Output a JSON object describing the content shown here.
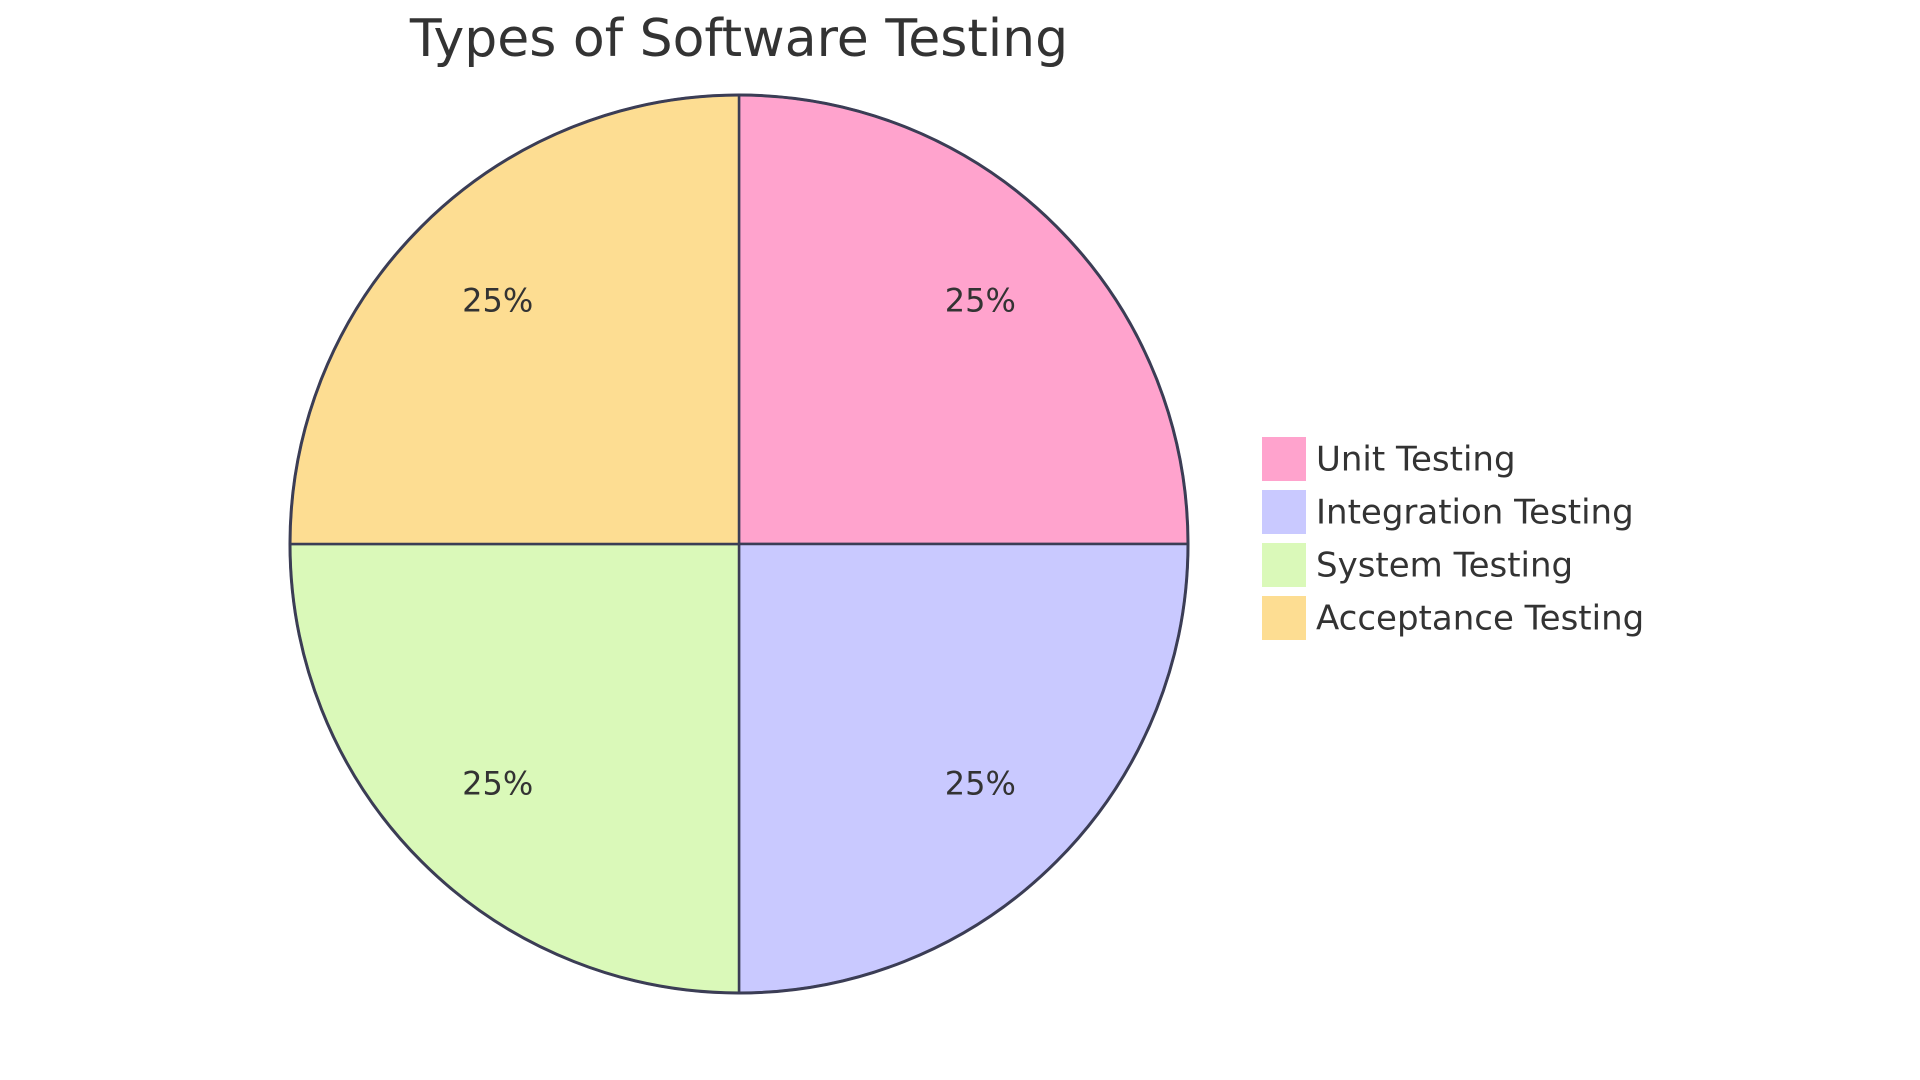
{
  "chart_data": {
    "type": "pie",
    "title": "Types of Software Testing",
    "categories": [
      "Unit Testing",
      "Integration Testing",
      "System Testing",
      "Acceptance Testing"
    ],
    "values": [
      25,
      25,
      25,
      25
    ],
    "value_labels": [
      "25%",
      "25%",
      "25%",
      "25%"
    ],
    "colors": [
      "#ffa3cd",
      "#c9c9ff",
      "#daf9b9",
      "#fddd92"
    ],
    "legend": "right"
  }
}
